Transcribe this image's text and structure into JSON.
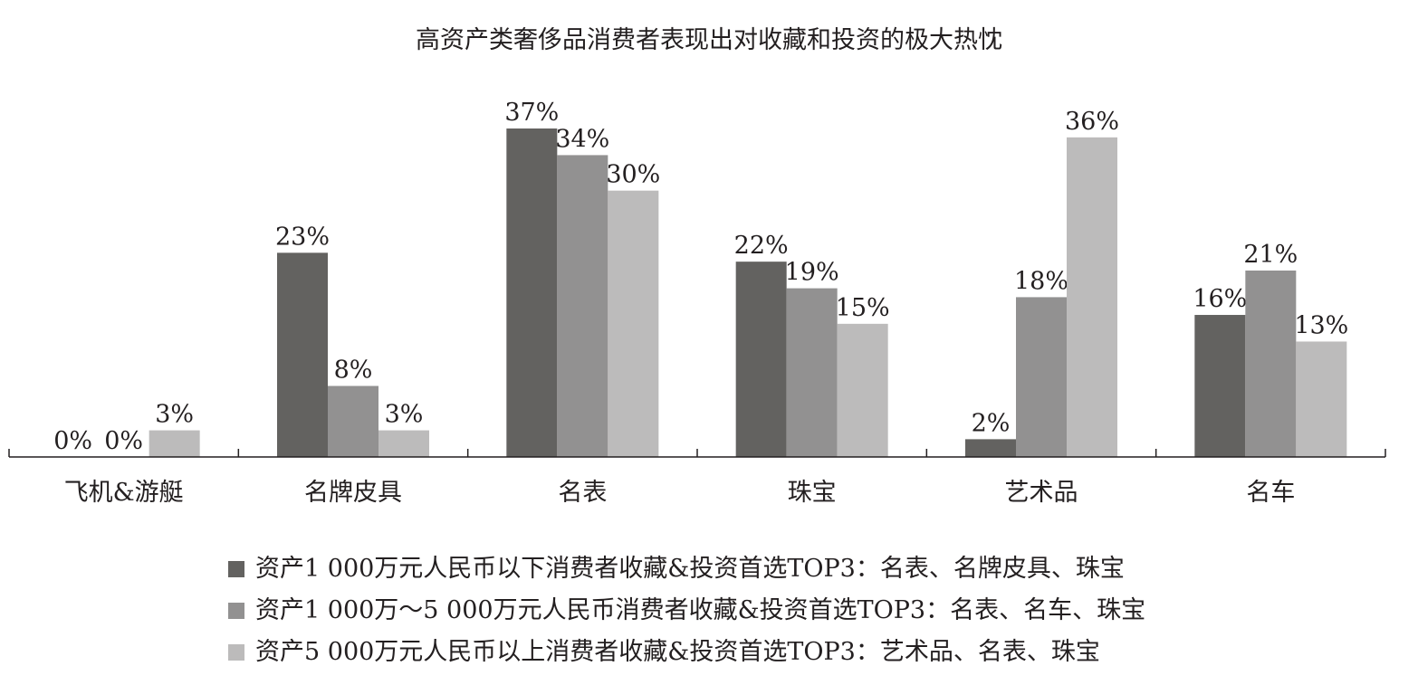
{
  "chart_data": {
    "type": "bar",
    "title": "高资产类奢侈品消费者表现出对收藏和投资的极大热忱",
    "categories": [
      "飞机&游艇",
      "名牌皮具",
      "名表",
      "珠宝",
      "艺术品",
      "名车"
    ],
    "series": [
      {
        "name": "资产1 000万元人民币以下消费者收藏&投资首选TOP3：名表、名牌皮具、珠宝",
        "color": "#636260",
        "values": [
          0,
          23,
          37,
          22,
          2,
          16
        ]
      },
      {
        "name": "资产1 000万～5 000万元人民币消费者收藏&投资首选TOP3：名表、名车、珠宝",
        "color": "#929191",
        "values": [
          0,
          8,
          34,
          19,
          18,
          21
        ]
      },
      {
        "name": "资产5 000万元人民币以上消费者收藏&投资首选TOP3：艺术品、名表、珠宝",
        "color": "#bcbbbb",
        "values": [
          3,
          3,
          30,
          15,
          36,
          13
        ]
      }
    ],
    "value_suffix": "%",
    "ylim": [
      0,
      37
    ],
    "grid": false,
    "legend_position": "bottom"
  }
}
